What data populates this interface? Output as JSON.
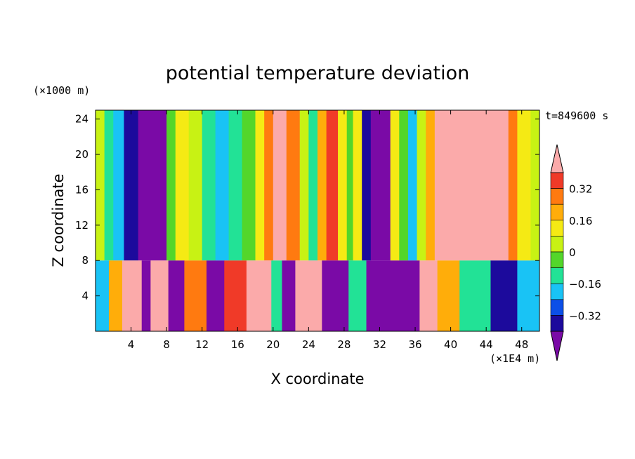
{
  "chart_data": {
    "type": "heatmap",
    "title": "potential temperature deviation",
    "xlabel": "X coordinate",
    "ylabel": "Z coordinate",
    "x_unit": "(×1E4 m)",
    "y_unit": "(×1000 m)",
    "time_label": "t=849600 s",
    "xlim": [
      0,
      50
    ],
    "ylim": [
      0,
      25
    ],
    "x_ticks": [
      "4",
      "8",
      "12",
      "16",
      "20",
      "24",
      "28",
      "32",
      "36",
      "40",
      "44",
      "48"
    ],
    "y_ticks": [
      "4",
      "8",
      "12",
      "16",
      "20",
      "24"
    ],
    "colorbar": {
      "levels": [
        "0.32",
        "0.16",
        "0",
        "−0.16",
        "−0.32"
      ],
      "colors": [
        "#7a0aa6",
        "#1c0a9c",
        "#0b4fe8",
        "#19c3f5",
        "#22e296",
        "#53d62a",
        "#c8f214",
        "#f5ea14",
        "#ffad0a",
        "#ff7a10",
        "#f03a28",
        "#fbaaaa"
      ],
      "bins": [
        "< -0.4",
        "-0.4 to -0.32",
        "-0.32 to -0.24",
        "-0.24 to -0.16",
        "-0.16 to -0.08",
        "-0.08 to 0",
        "0 to 0.08",
        "0.08 to 0.16",
        "0.16 to 0.24",
        "0.24 to 0.32",
        "0.32 to 0.4",
        "> 0.4"
      ]
    },
    "upper_layer_columns": {
      "z_range": [
        8,
        25
      ],
      "columns": [
        {
          "x": [
            0,
            1
          ],
          "level": 6
        },
        {
          "x": [
            1,
            2
          ],
          "level": 4
        },
        {
          "x": [
            2,
            3.2
          ],
          "level": 3
        },
        {
          "x": [
            3.2,
            4.8
          ],
          "level": 1
        },
        {
          "x": [
            4.8,
            8
          ],
          "level": 0
        },
        {
          "x": [
            8,
            9
          ],
          "level": 5
        },
        {
          "x": [
            9,
            10.5
          ],
          "level": 7
        },
        {
          "x": [
            10.5,
            12
          ],
          "level": 6
        },
        {
          "x": [
            12,
            13.5
          ],
          "level": 4
        },
        {
          "x": [
            13.5,
            15
          ],
          "level": 3
        },
        {
          "x": [
            15,
            16.5
          ],
          "level": 4
        },
        {
          "x": [
            16.5,
            18
          ],
          "level": 5
        },
        {
          "x": [
            18,
            19
          ],
          "level": 7
        },
        {
          "x": [
            19,
            20
          ],
          "level": 9
        },
        {
          "x": [
            20,
            21.5
          ],
          "level": 11
        },
        {
          "x": [
            21.5,
            23
          ],
          "level": 9
        },
        {
          "x": [
            23,
            24
          ],
          "level": 6
        },
        {
          "x": [
            24,
            25
          ],
          "level": 4
        },
        {
          "x": [
            25,
            26
          ],
          "level": 8
        },
        {
          "x": [
            26,
            27.3
          ],
          "level": 10
        },
        {
          "x": [
            27.3,
            28.3
          ],
          "level": 7
        },
        {
          "x": [
            28.3,
            29
          ],
          "level": 5
        },
        {
          "x": [
            29,
            30
          ],
          "level": 7
        },
        {
          "x": [
            30,
            31
          ],
          "level": 1
        },
        {
          "x": [
            31,
            33.2
          ],
          "level": 0
        },
        {
          "x": [
            33.2,
            34.2
          ],
          "level": 7
        },
        {
          "x": [
            34.2,
            35.2
          ],
          "level": 5
        },
        {
          "x": [
            35.2,
            36.2
          ],
          "level": 3
        },
        {
          "x": [
            36.2,
            37.2
          ],
          "level": 6
        },
        {
          "x": [
            37.2,
            38.2
          ],
          "level": 8
        },
        {
          "x": [
            38.2,
            46.5
          ],
          "level": 11
        },
        {
          "x": [
            46.5,
            47.5
          ],
          "level": 9
        },
        {
          "x": [
            47.5,
            49
          ],
          "level": 7
        },
        {
          "x": [
            49,
            50
          ],
          "level": 6
        }
      ]
    },
    "lower_layer_columns": {
      "z_range": [
        0,
        8
      ],
      "columns": [
        {
          "x": [
            0,
            1.5
          ],
          "level": 3
        },
        {
          "x": [
            1.5,
            3
          ],
          "level": 8
        },
        {
          "x": [
            3,
            5.2
          ],
          "level": 11
        },
        {
          "x": [
            5.2,
            6.2
          ],
          "level": 0
        },
        {
          "x": [
            6.2,
            8.2
          ],
          "level": 11
        },
        {
          "x": [
            8.2,
            10
          ],
          "level": 0
        },
        {
          "x": [
            10,
            12.5
          ],
          "level": 9
        },
        {
          "x": [
            12.5,
            14.5
          ],
          "level": 0
        },
        {
          "x": [
            14.5,
            17
          ],
          "level": 10
        },
        {
          "x": [
            17,
            19.8
          ],
          "level": 11
        },
        {
          "x": [
            19.8,
            21
          ],
          "level": 4
        },
        {
          "x": [
            21,
            22.5
          ],
          "level": 0
        },
        {
          "x": [
            22.5,
            25.5
          ],
          "level": 11
        },
        {
          "x": [
            25.5,
            28.5
          ],
          "level": 0
        },
        {
          "x": [
            28.5,
            30.5
          ],
          "level": 4
        },
        {
          "x": [
            30.5,
            36.5
          ],
          "level": 0
        },
        {
          "x": [
            36.5,
            38.5
          ],
          "level": 11
        },
        {
          "x": [
            38.5,
            41
          ],
          "level": 8
        },
        {
          "x": [
            41,
            44.5
          ],
          "level": 4
        },
        {
          "x": [
            44.5,
            47.5
          ],
          "level": 1
        },
        {
          "x": [
            47.5,
            50
          ],
          "level": 3
        }
      ]
    }
  }
}
